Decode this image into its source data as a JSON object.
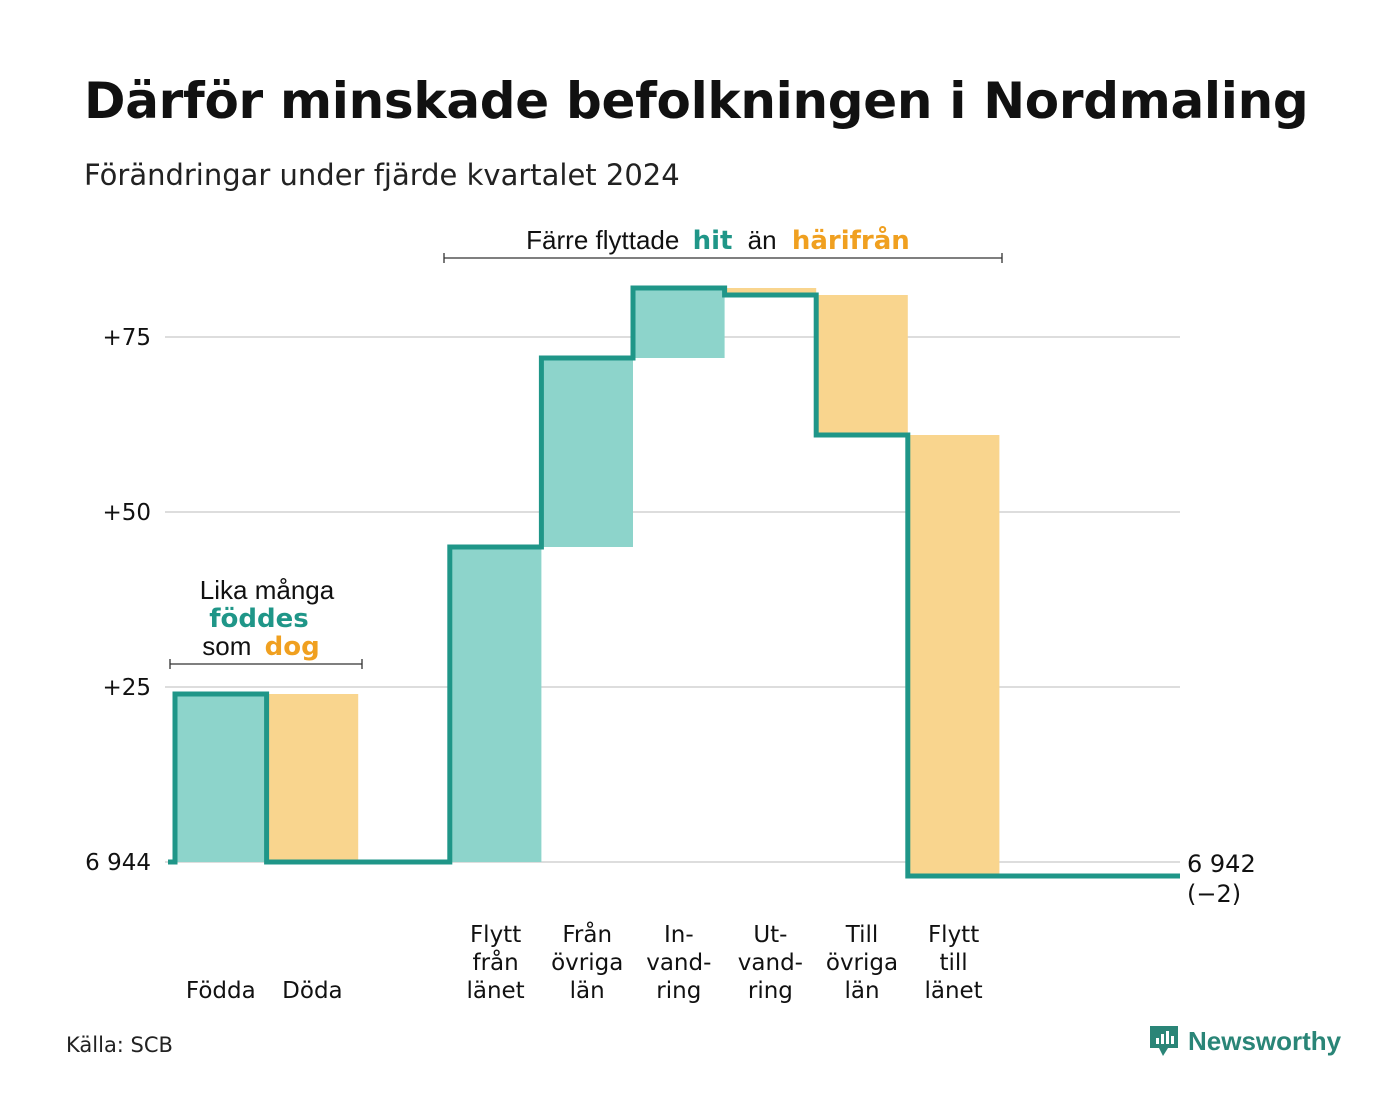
{
  "title": "Därför minskade befolkningen i Nordmaling",
  "subtitle": "Förändringar under fjärde kvartalet 2024",
  "source": "Källa: SCB",
  "brand": "Newsworthy",
  "colors": {
    "in": "#8dd4cb",
    "out": "#f9d58e",
    "line": "#1f9688",
    "accent_in": "#1f9688",
    "accent_out": "#f0a020",
    "grid": "#dddddd"
  },
  "annotations": {
    "births": {
      "line1": "Lika många",
      "in_word": "föddes",
      "mid": "som",
      "out_word": "dog"
    },
    "migration": {
      "prefix": "Färre flyttade",
      "in_word": "hit",
      "mid": "än",
      "out_word": "härifrån"
    }
  },
  "chart_data": {
    "type": "waterfall",
    "start_label": "6 944",
    "end_label": "6 942",
    "end_change": "(−2)",
    "y_ticks": [
      {
        "value": 0,
        "label": "6 944"
      },
      {
        "value": 25,
        "label": "+25"
      },
      {
        "value": 50,
        "label": "+50"
      },
      {
        "value": 75,
        "label": "+75"
      }
    ],
    "ylim": [
      -4,
      82
    ],
    "steps": [
      {
        "label": [
          "Födda"
        ],
        "change": 24,
        "kind": "in"
      },
      {
        "label": [
          "Döda"
        ],
        "change": -24,
        "kind": "out"
      },
      {
        "label": [],
        "change": 0,
        "kind": "gap"
      },
      {
        "label": [
          "Flytt",
          "från",
          "länet"
        ],
        "change": 45,
        "kind": "in"
      },
      {
        "label": [
          "Från",
          "övriga",
          "län"
        ],
        "change": 27,
        "kind": "in"
      },
      {
        "label": [
          "In-",
          "vand-",
          "ring"
        ],
        "change": 10,
        "kind": "in"
      },
      {
        "label": [
          "Ut-",
          "vand-",
          "ring"
        ],
        "change": -1,
        "kind": "out"
      },
      {
        "label": [
          "Till",
          "övriga",
          "län"
        ],
        "change": -20,
        "kind": "out"
      },
      {
        "label": [
          "Flytt",
          "till",
          "länet"
        ],
        "change": -63,
        "kind": "out"
      }
    ]
  }
}
